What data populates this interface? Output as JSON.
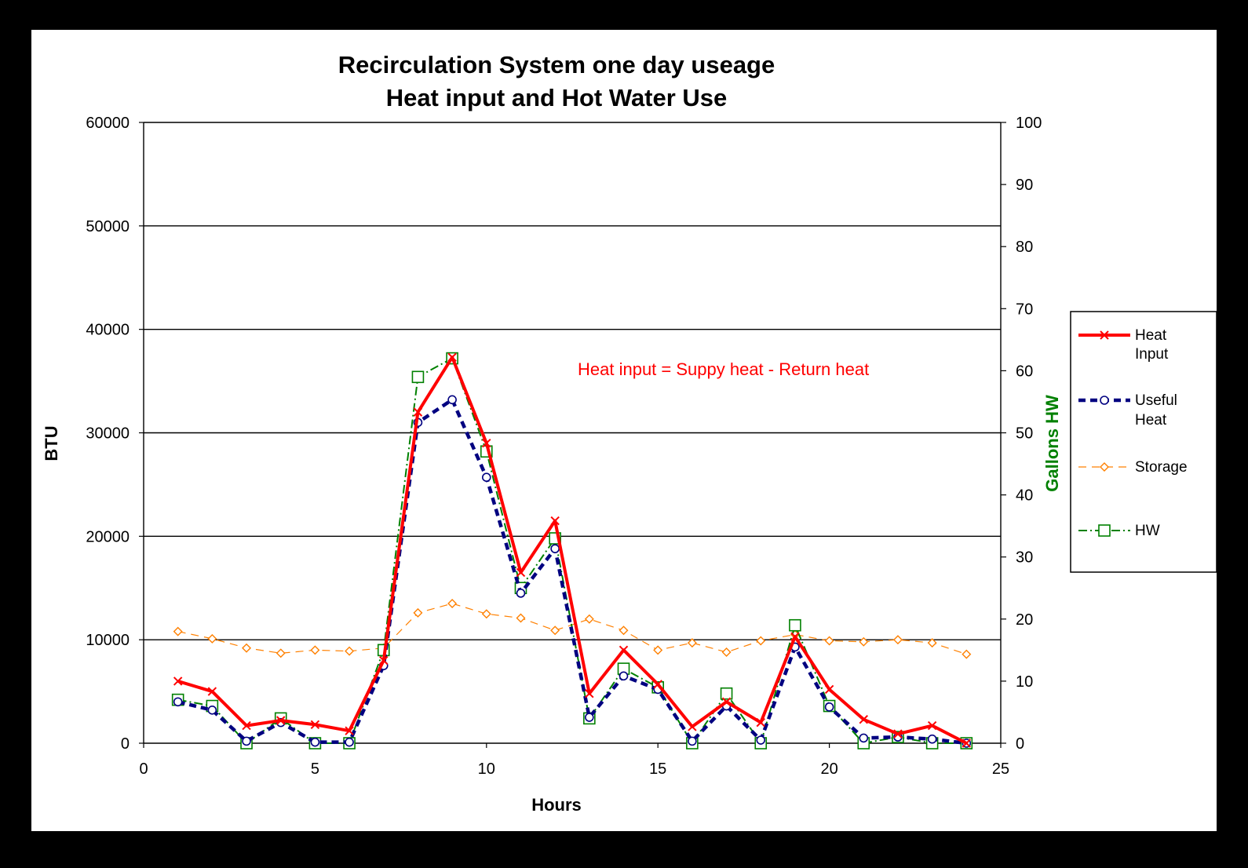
{
  "chart_data": {
    "type": "line",
    "title": [
      "Recirculation System one day useage",
      "Heat input and Hot Water Use"
    ],
    "xlabel": "Hours",
    "ylabel": "BTU",
    "y2label": "Gallons HW",
    "xlim": [
      0,
      25
    ],
    "ylim": [
      0,
      60000
    ],
    "y2lim": [
      0,
      100
    ],
    "xticks": [
      "0",
      "5",
      "10",
      "15",
      "20",
      "25"
    ],
    "yticks": [
      "0",
      "10000",
      "20000",
      "30000",
      "40000",
      "50000",
      "60000"
    ],
    "y2ticks": [
      "0",
      "10",
      "20",
      "30",
      "40",
      "50",
      "60",
      "70",
      "80",
      "90",
      "100"
    ],
    "grid": "horizontal major gridlines on BTU axis",
    "legend_position": "right",
    "annotation": "Heat input = Suppy heat - Return heat",
    "x": [
      1,
      2,
      3,
      4,
      5,
      6,
      7,
      8,
      9,
      10,
      11,
      12,
      13,
      14,
      15,
      16,
      17,
      18,
      19,
      20,
      21,
      22,
      23,
      24
    ],
    "series": [
      {
        "name": "Heat Input",
        "axis": "BTU",
        "color": "#ff0000",
        "style": "solid",
        "marker": "x",
        "values": [
          6000,
          5000,
          1700,
          2200,
          1800,
          1200,
          8000,
          32000,
          37300,
          29000,
          16500,
          21500,
          4800,
          9000,
          5700,
          1600,
          4000,
          2000,
          10300,
          5200,
          2300,
          900,
          1700,
          0
        ]
      },
      {
        "name": "Useful Heat",
        "axis": "BTU",
        "color": "#000080",
        "style": "dashed",
        "marker": "circle",
        "values": [
          4000,
          3200,
          200,
          2000,
          100,
          100,
          7500,
          31000,
          33200,
          25700,
          14500,
          18800,
          2500,
          6500,
          5200,
          200,
          3600,
          300,
          9300,
          3500,
          500,
          600,
          400,
          0
        ]
      },
      {
        "name": "Storage",
        "axis": "BTU",
        "color": "#ff8000",
        "style": "dashed",
        "marker": "diamond",
        "values": [
          10800,
          10100,
          9200,
          8700,
          9000,
          8900,
          9200,
          12600,
          13500,
          12500,
          12100,
          10900,
          12000,
          10900,
          9000,
          9700,
          8800,
          9900,
          10500,
          9900,
          9800,
          10000,
          9700,
          8600
        ]
      },
      {
        "name": "HW",
        "axis": "Gallons HW",
        "color": "#008000",
        "style": "dash-dot",
        "marker": "square",
        "values": [
          7,
          6,
          0,
          4,
          0,
          0,
          15,
          59,
          62,
          47,
          25,
          33,
          4,
          12,
          9,
          0,
          8,
          0,
          19,
          6,
          0,
          1,
          0,
          0
        ]
      }
    ]
  },
  "legend": {
    "items": [
      {
        "line1": "Heat",
        "line2": "Input"
      },
      {
        "line1": "Useful",
        "line2": "Heat"
      },
      {
        "line1": "Storage",
        "line2": ""
      },
      {
        "line1": "HW",
        "line2": ""
      }
    ]
  }
}
